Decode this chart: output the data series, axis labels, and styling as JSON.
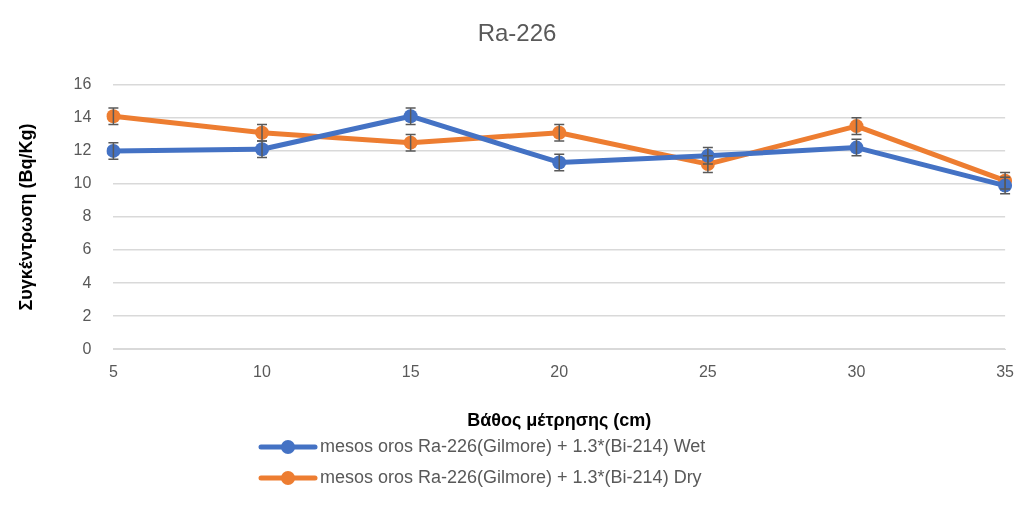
{
  "chart_data": {
    "type": "line",
    "title": "Ra-226",
    "xlabel": "Βάθος μέτρησης (cm)",
    "ylabel": "Συγκέντρωση (Bq/Kg)",
    "categories": [
      "5",
      "10",
      "15",
      "20",
      "25",
      "30",
      "35"
    ],
    "series": [
      {
        "name": "mesos oros Ra-226(Gilmore) + 1.3*(Bi-214) Wet",
        "color": "#4472c4",
        "values": [
          12.0,
          12.1,
          14.1,
          11.3,
          11.7,
          12.2,
          9.9
        ],
        "errors": [
          0.5,
          0.5,
          0.5,
          0.5,
          0.5,
          0.5,
          0.5
        ]
      },
      {
        "name": "mesos oros Ra-226(Gilmore) + 1.3*(Bi-214) Dry",
        "color": "#ed7d31",
        "values": [
          14.1,
          13.1,
          12.5,
          13.1,
          11.2,
          13.5,
          10.2
        ],
        "errors": [
          0.5,
          0.5,
          0.5,
          0.5,
          0.5,
          0.5,
          0.5
        ]
      }
    ],
    "ylim": [
      0,
      16
    ],
    "yticks": [
      0,
      2,
      4,
      6,
      8,
      10,
      12,
      14,
      16
    ],
    "grid": "y",
    "legend": "bottom",
    "marker": "circle",
    "line_style": "solid"
  }
}
